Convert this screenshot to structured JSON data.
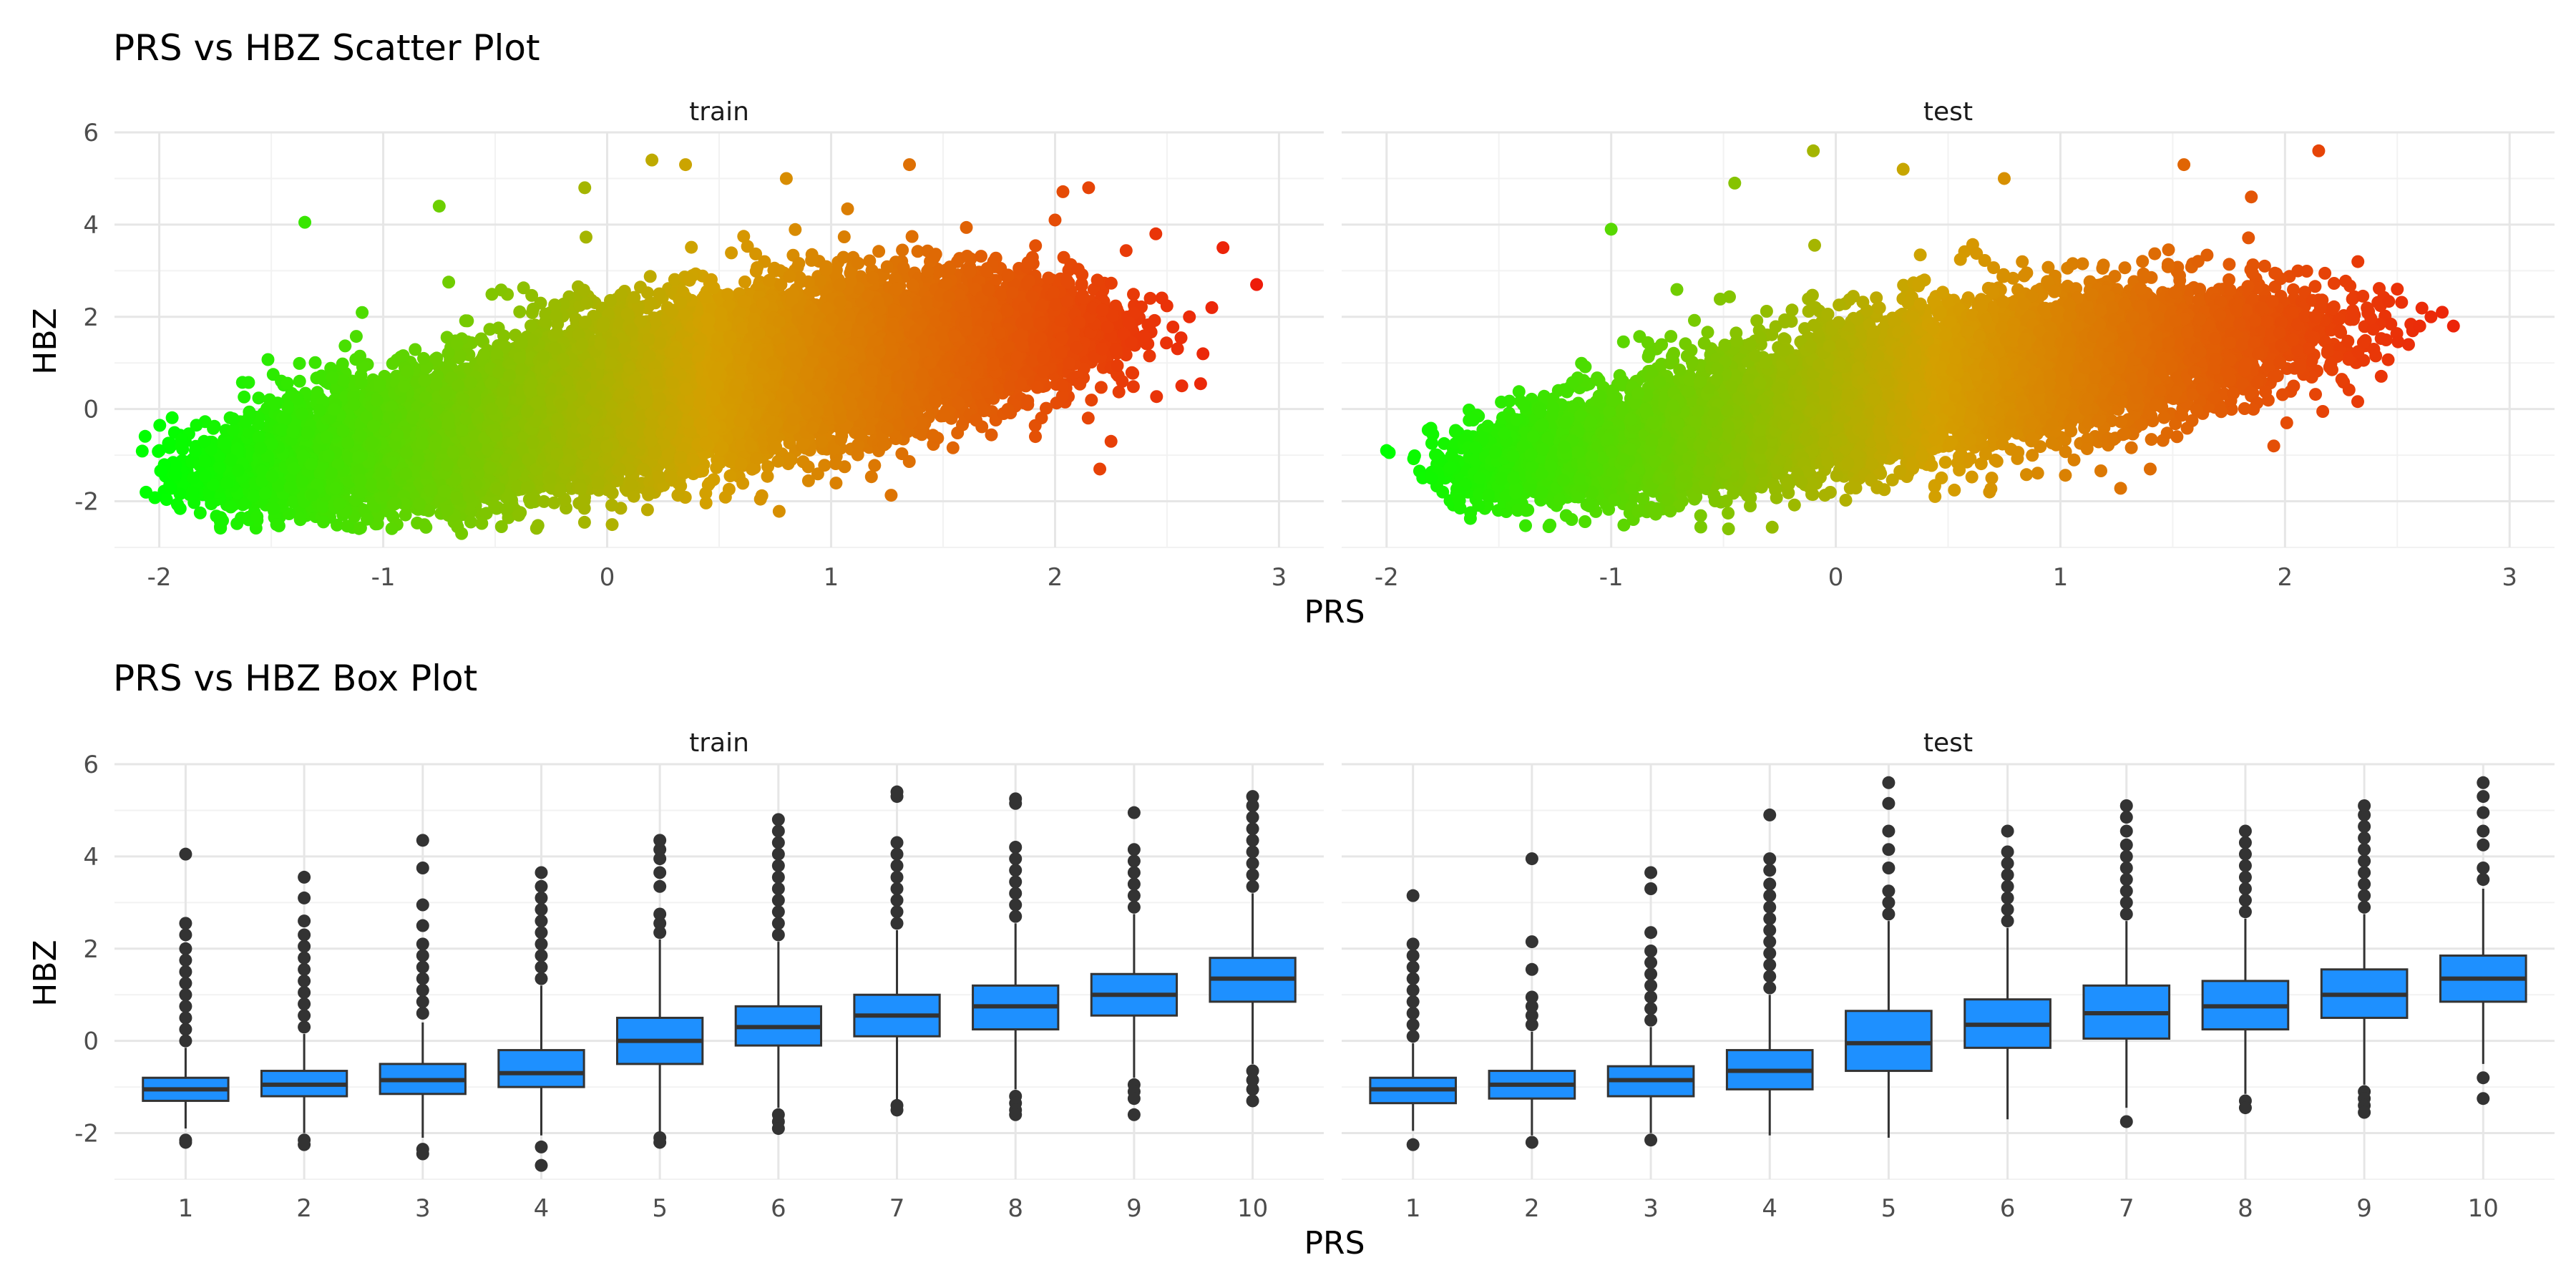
{
  "chart_data": [
    {
      "type": "scatter",
      "title": "PRS vs HBZ Scatter Plot",
      "xlabel": "PRS",
      "ylabel": "HBZ",
      "xlim": [
        -2.2,
        3.2
      ],
      "ylim": [
        -3,
        6
      ],
      "xticks": [
        -2,
        -1,
        0,
        1,
        2,
        3
      ],
      "yticks": [
        -2,
        0,
        2,
        4,
        6
      ],
      "grid": true,
      "legend": "none",
      "color_scale": {
        "low": "#00ff00",
        "mid": "#d4a000",
        "high": "#ee1c0a",
        "mapped_to": "PRS"
      },
      "facets": [
        {
          "label": "train",
          "density": [
            {
              "x": -1.5,
              "y": -1.4,
              "sx": 0.22,
              "sy": 0.45,
              "n": 900
            },
            {
              "x": -1.0,
              "y": -0.9,
              "sx": 0.3,
              "sy": 0.6,
              "n": 2200
            },
            {
              "x": -0.5,
              "y": -0.4,
              "sx": 0.3,
              "sy": 0.7,
              "n": 2600
            },
            {
              "x": 0.0,
              "y": 0.2,
              "sx": 0.3,
              "sy": 0.8,
              "n": 2800
            },
            {
              "x": 0.5,
              "y": 0.7,
              "sx": 0.3,
              "sy": 0.85,
              "n": 2600
            },
            {
              "x": 1.0,
              "y": 1.1,
              "sx": 0.3,
              "sy": 0.8,
              "n": 2200
            },
            {
              "x": 1.5,
              "y": 1.5,
              "sx": 0.28,
              "sy": 0.75,
              "n": 1500
            },
            {
              "x": 2.0,
              "y": 1.8,
              "sx": 0.2,
              "sy": 0.6,
              "n": 500
            }
          ],
          "outliers": [
            {
              "x": -2.0,
              "y": -0.9
            },
            {
              "x": -1.95,
              "y": -1.7
            },
            {
              "x": -1.9,
              "y": -0.8
            },
            {
              "x": -1.8,
              "y": -0.7
            },
            {
              "x": -1.7,
              "y": -1.6
            },
            {
              "x": -1.35,
              "y": 4.05
            },
            {
              "x": -0.75,
              "y": 4.4
            },
            {
              "x": -0.65,
              "y": -2.7
            },
            {
              "x": -0.1,
              "y": 4.8
            },
            {
              "x": 0.2,
              "y": 5.4
            },
            {
              "x": 0.35,
              "y": 5.3
            },
            {
              "x": 0.8,
              "y": 5.0
            },
            {
              "x": 1.35,
              "y": 5.3
            },
            {
              "x": 2.15,
              "y": 4.8
            },
            {
              "x": 2.0,
              "y": 4.1
            },
            {
              "x": 2.2,
              "y": -1.3
            },
            {
              "x": 2.25,
              "y": -0.7
            },
            {
              "x": 2.45,
              "y": 3.8
            },
            {
              "x": 2.6,
              "y": 2.0
            },
            {
              "x": 2.65,
              "y": 0.55
            },
            {
              "x": 2.7,
              "y": 2.2
            },
            {
              "x": 2.75,
              "y": 3.5
            },
            {
              "x": 2.9,
              "y": 2.7
            },
            {
              "x": 2.3,
              "y": 0.6
            }
          ]
        },
        {
          "label": "test",
          "density": [
            {
              "x": -1.4,
              "y": -1.3,
              "sx": 0.2,
              "sy": 0.4,
              "n": 500
            },
            {
              "x": -1.0,
              "y": -0.9,
              "sx": 0.28,
              "sy": 0.55,
              "n": 1200
            },
            {
              "x": -0.5,
              "y": -0.4,
              "sx": 0.3,
              "sy": 0.65,
              "n": 1500
            },
            {
              "x": 0.0,
              "y": 0.2,
              "sx": 0.3,
              "sy": 0.75,
              "n": 1600
            },
            {
              "x": 0.5,
              "y": 0.7,
              "sx": 0.3,
              "sy": 0.8,
              "n": 1500
            },
            {
              "x": 1.0,
              "y": 1.1,
              "sx": 0.3,
              "sy": 0.75,
              "n": 1300
            },
            {
              "x": 1.5,
              "y": 1.4,
              "sx": 0.28,
              "sy": 0.7,
              "n": 900
            },
            {
              "x": 2.0,
              "y": 1.7,
              "sx": 0.22,
              "sy": 0.55,
              "n": 300
            }
          ],
          "outliers": [
            {
              "x": -2.0,
              "y": -0.9
            },
            {
              "x": -1.8,
              "y": -1.5
            },
            {
              "x": -1.75,
              "y": -1.8
            },
            {
              "x": -1.0,
              "y": 3.9
            },
            {
              "x": -0.45,
              "y": 4.9
            },
            {
              "x": -0.1,
              "y": 5.6
            },
            {
              "x": 0.3,
              "y": 5.2
            },
            {
              "x": 0.75,
              "y": 5.0
            },
            {
              "x": 1.55,
              "y": 5.3
            },
            {
              "x": 2.15,
              "y": 5.6
            },
            {
              "x": 1.85,
              "y": 4.6
            },
            {
              "x": 1.4,
              "y": -1.3
            },
            {
              "x": 1.95,
              "y": -0.8
            },
            {
              "x": 2.5,
              "y": 2.6
            },
            {
              "x": 2.55,
              "y": 1.4
            },
            {
              "x": 2.6,
              "y": 1.8
            },
            {
              "x": 2.65,
              "y": 2.0
            },
            {
              "x": 2.7,
              "y": 2.1
            },
            {
              "x": 2.75,
              "y": 1.8
            },
            {
              "x": 2.45,
              "y": 1.5
            }
          ]
        }
      ]
    },
    {
      "type": "box",
      "title": "PRS vs HBZ Box Plot",
      "xlabel": "PRS",
      "ylabel": "HBZ",
      "ylim": [
        -3,
        6
      ],
      "yticks": [
        -2,
        0,
        2,
        4,
        6
      ],
      "categories": [
        "1",
        "2",
        "3",
        "4",
        "5",
        "6",
        "7",
        "8",
        "9",
        "10"
      ],
      "fill_color": "#1e90ff",
      "grid": true,
      "facets": [
        {
          "label": "train",
          "boxes": [
            {
              "q1": -1.3,
              "median": -1.05,
              "q3": -0.8,
              "lo": -1.9,
              "hi": -0.15,
              "hi_out": [
                0.0,
                0.25,
                0.5,
                0.75,
                1.0,
                1.25,
                1.5,
                1.75,
                2.0,
                2.3,
                2.55,
                4.05
              ],
              "lo_out": [
                -2.15,
                -2.2
              ]
            },
            {
              "q1": -1.2,
              "median": -0.95,
              "q3": -0.65,
              "lo": -2.0,
              "hi": 0.15,
              "hi_out": [
                0.3,
                0.55,
                0.8,
                1.05,
                1.3,
                1.55,
                1.8,
                2.05,
                2.3,
                2.6,
                3.1,
                3.55
              ],
              "lo_out": [
                -2.15,
                -2.25
              ]
            },
            {
              "q1": -1.15,
              "median": -0.85,
              "q3": -0.5,
              "lo": -2.1,
              "hi": 0.4,
              "hi_out": [
                0.6,
                0.85,
                1.1,
                1.35,
                1.6,
                1.85,
                2.1,
                2.5,
                2.95,
                3.75,
                4.35
              ],
              "lo_out": [
                -2.35,
                -2.45
              ]
            },
            {
              "q1": -1.0,
              "median": -0.7,
              "q3": -0.2,
              "lo": -2.05,
              "hi": 1.2,
              "hi_out": [
                1.35,
                1.6,
                1.85,
                2.1,
                2.35,
                2.6,
                2.85,
                3.1,
                3.35,
                3.65
              ],
              "lo_out": [
                -2.3,
                -2.7
              ]
            },
            {
              "q1": -0.5,
              "median": 0.0,
              "q3": 0.5,
              "lo": -2.0,
              "hi": 2.2,
              "hi_out": [
                2.35,
                2.55,
                2.75,
                3.35,
                3.65,
                3.95,
                4.15,
                4.35
              ],
              "lo_out": [
                -2.1,
                -2.2
              ]
            },
            {
              "q1": -0.1,
              "median": 0.3,
              "q3": 0.75,
              "lo": -1.45,
              "hi": 2.15,
              "hi_out": [
                2.3,
                2.55,
                2.8,
                3.05,
                3.3,
                3.55,
                3.8,
                4.05,
                4.3,
                4.55,
                4.8
              ],
              "lo_out": [
                -1.6,
                -1.75,
                -1.9
              ]
            },
            {
              "q1": 0.1,
              "median": 0.55,
              "q3": 1.0,
              "lo": -1.3,
              "hi": 2.4,
              "hi_out": [
                2.55,
                2.8,
                3.05,
                3.3,
                3.55,
                3.8,
                4.05,
                4.3,
                5.3,
                5.4
              ],
              "lo_out": [
                -1.4,
                -1.5
              ]
            },
            {
              "q1": 0.25,
              "median": 0.75,
              "q3": 1.2,
              "lo": -1.05,
              "hi": 2.55,
              "hi_out": [
                2.7,
                2.95,
                3.2,
                3.45,
                3.7,
                3.95,
                4.2,
                5.15,
                5.25
              ],
              "lo_out": [
                -1.2,
                -1.35,
                -1.5,
                -1.6
              ]
            },
            {
              "q1": 0.55,
              "median": 1.0,
              "q3": 1.45,
              "lo": -0.8,
              "hi": 2.75,
              "hi_out": [
                2.9,
                3.15,
                3.4,
                3.65,
                3.9,
                4.15,
                4.95
              ],
              "lo_out": [
                -0.95,
                -1.1,
                -1.25,
                -1.6
              ]
            },
            {
              "q1": 0.85,
              "median": 1.35,
              "q3": 1.8,
              "lo": -0.5,
              "hi": 3.2,
              "hi_out": [
                3.35,
                3.6,
                3.85,
                4.1,
                4.35,
                4.6,
                4.85,
                5.1,
                5.3
              ],
              "lo_out": [
                -0.65,
                -0.85,
                -1.05,
                -1.3
              ]
            }
          ]
        },
        {
          "label": "test",
          "boxes": [
            {
              "q1": -1.35,
              "median": -1.05,
              "q3": -0.8,
              "lo": -1.95,
              "hi": -0.05,
              "hi_out": [
                0.1,
                0.35,
                0.6,
                0.85,
                1.1,
                1.35,
                1.6,
                1.85,
                2.1,
                3.15
              ],
              "lo_out": [
                -2.25
              ]
            },
            {
              "q1": -1.25,
              "median": -0.95,
              "q3": -0.65,
              "lo": -2.05,
              "hi": 0.2,
              "hi_out": [
                0.35,
                0.55,
                0.75,
                0.95,
                1.55,
                2.15,
                3.95
              ],
              "lo_out": [
                -2.2
              ]
            },
            {
              "q1": -1.2,
              "median": -0.85,
              "q3": -0.55,
              "lo": -2.0,
              "hi": 0.3,
              "hi_out": [
                0.45,
                0.7,
                0.95,
                1.2,
                1.45,
                1.7,
                1.95,
                2.35,
                3.3,
                3.65
              ],
              "lo_out": [
                -2.15
              ]
            },
            {
              "q1": -1.05,
              "median": -0.65,
              "q3": -0.2,
              "lo": -2.05,
              "hi": 1.0,
              "hi_out": [
                1.15,
                1.4,
                1.65,
                1.9,
                2.15,
                2.4,
                2.65,
                2.9,
                3.15,
                3.4,
                3.7,
                3.95,
                4.9
              ],
              "lo_out": []
            },
            {
              "q1": -0.65,
              "median": -0.05,
              "q3": 0.65,
              "lo": -2.1,
              "hi": 2.6,
              "hi_out": [
                2.75,
                3.0,
                3.25,
                3.75,
                4.15,
                4.55,
                5.15,
                5.6
              ],
              "lo_out": []
            },
            {
              "q1": -0.15,
              "median": 0.35,
              "q3": 0.9,
              "lo": -1.7,
              "hi": 2.45,
              "hi_out": [
                2.6,
                2.85,
                3.1,
                3.35,
                3.6,
                3.85,
                4.1,
                4.55
              ],
              "lo_out": []
            },
            {
              "q1": 0.05,
              "median": 0.6,
              "q3": 1.2,
              "lo": -1.45,
              "hi": 2.6,
              "hi_out": [
                2.75,
                3.0,
                3.25,
                3.5,
                3.75,
                4.0,
                4.25,
                4.55,
                4.85,
                5.1
              ],
              "lo_out": [
                -1.75
              ]
            },
            {
              "q1": 0.25,
              "median": 0.75,
              "q3": 1.3,
              "lo": -1.15,
              "hi": 2.65,
              "hi_out": [
                2.8,
                3.05,
                3.3,
                3.55,
                3.8,
                4.05,
                4.3,
                4.55
              ],
              "lo_out": [
                -1.3,
                -1.45
              ]
            },
            {
              "q1": 0.5,
              "median": 1.0,
              "q3": 1.55,
              "lo": -0.95,
              "hi": 2.75,
              "hi_out": [
                2.9,
                3.15,
                3.4,
                3.65,
                3.9,
                4.15,
                4.4,
                4.65,
                4.9,
                5.1
              ],
              "lo_out": [
                -1.1,
                -1.25,
                -1.4,
                -1.55
              ]
            },
            {
              "q1": 0.85,
              "median": 1.35,
              "q3": 1.85,
              "lo": -0.5,
              "hi": 3.3,
              "hi_out": [
                3.5,
                3.75,
                4.25,
                4.55,
                4.95,
                5.3,
                5.6
              ],
              "lo_out": [
                -0.8,
                -1.25
              ]
            }
          ]
        }
      ]
    }
  ]
}
